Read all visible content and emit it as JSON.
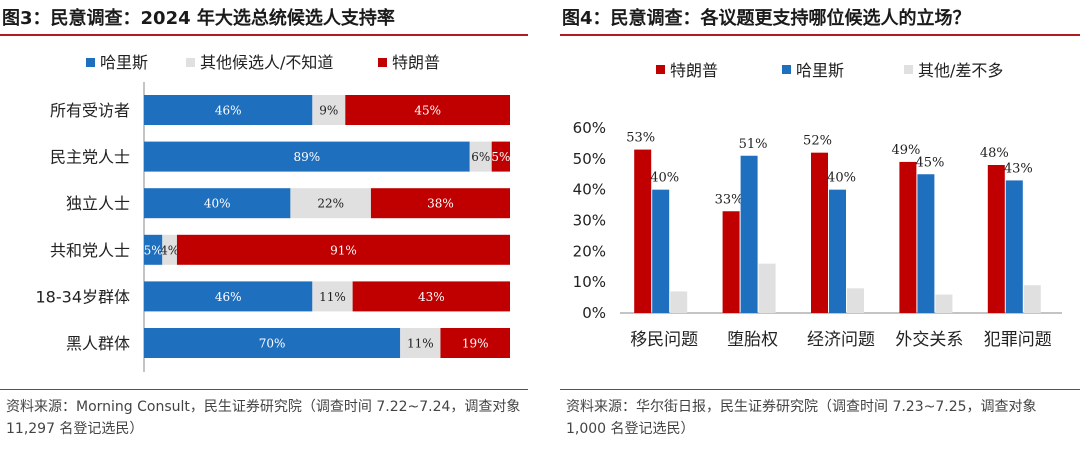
{
  "colors": {
    "harris": "#1f6fbf",
    "other": "#e0e0e0",
    "trump": "#c00000",
    "accent": "#b11b22"
  },
  "left": {
    "title": "图3：民意调查：2024 年大选总统候选人支持率",
    "source": "资料来源：Morning Consult，民生证券研究院（调查时间 7.22~7.24，调查对象 11,297 名登记选民）"
  },
  "right": {
    "title": "图4：民意调查：各议题更支持哪位候选人的立场？",
    "source": "资料来源：华尔街日报，民生证券研究院（调查时间 7.23~7.25，调查对象 1,000 名登记选民）"
  },
  "chart_data": [
    {
      "type": "bar",
      "orientation": "horizontal",
      "stacked": true,
      "categories": [
        "所有受访者",
        "民主党人士",
        "独立人士",
        "共和党人士",
        "18-34岁群体",
        "黑人群体"
      ],
      "series": [
        {
          "name": "哈里斯",
          "color": "#1f6fbf",
          "values": [
            46,
            89,
            40,
            5,
            46,
            70
          ],
          "labels": [
            "46%",
            "89%",
            "40%",
            "5%",
            "46%",
            "70%"
          ]
        },
        {
          "name": "其他候选人/不知道",
          "color": "#e0e0e0",
          "values": [
            9,
            6,
            22,
            4,
            11,
            11
          ],
          "labels": [
            "9%",
            "6%",
            "22%",
            "4%",
            "11%",
            "11%"
          ]
        },
        {
          "name": "特朗普",
          "color": "#c00000",
          "values": [
            45,
            5,
            38,
            91,
            43,
            19
          ],
          "labels": [
            "45%",
            "5%",
            "38%",
            "91%",
            "43%",
            "19%"
          ]
        }
      ],
      "legend_position": "top",
      "xlim": [
        0,
        100
      ]
    },
    {
      "type": "bar",
      "orientation": "vertical",
      "categories": [
        "移民问题",
        "堕胎权",
        "经济问题",
        "外交关系",
        "犯罪问题"
      ],
      "series": [
        {
          "name": "特朗普",
          "color": "#c00000",
          "values": [
            53,
            33,
            52,
            49,
            48
          ],
          "labels": [
            "53%",
            "33%",
            "52%",
            "49%",
            "48%"
          ]
        },
        {
          "name": "哈里斯",
          "color": "#1f6fbf",
          "values": [
            40,
            51,
            40,
            45,
            43
          ],
          "labels": [
            "40%",
            "51%",
            "40%",
            "45%",
            "43%"
          ]
        },
        {
          "name": "其他/差不多",
          "color": "#e0e0e0",
          "values": [
            7,
            16,
            8,
            6,
            9
          ],
          "labels": null
        }
      ],
      "ylim": [
        0,
        60
      ],
      "yticks": [
        "0%",
        "10%",
        "20%",
        "30%",
        "40%",
        "50%",
        "60%"
      ],
      "legend_position": "top"
    }
  ]
}
